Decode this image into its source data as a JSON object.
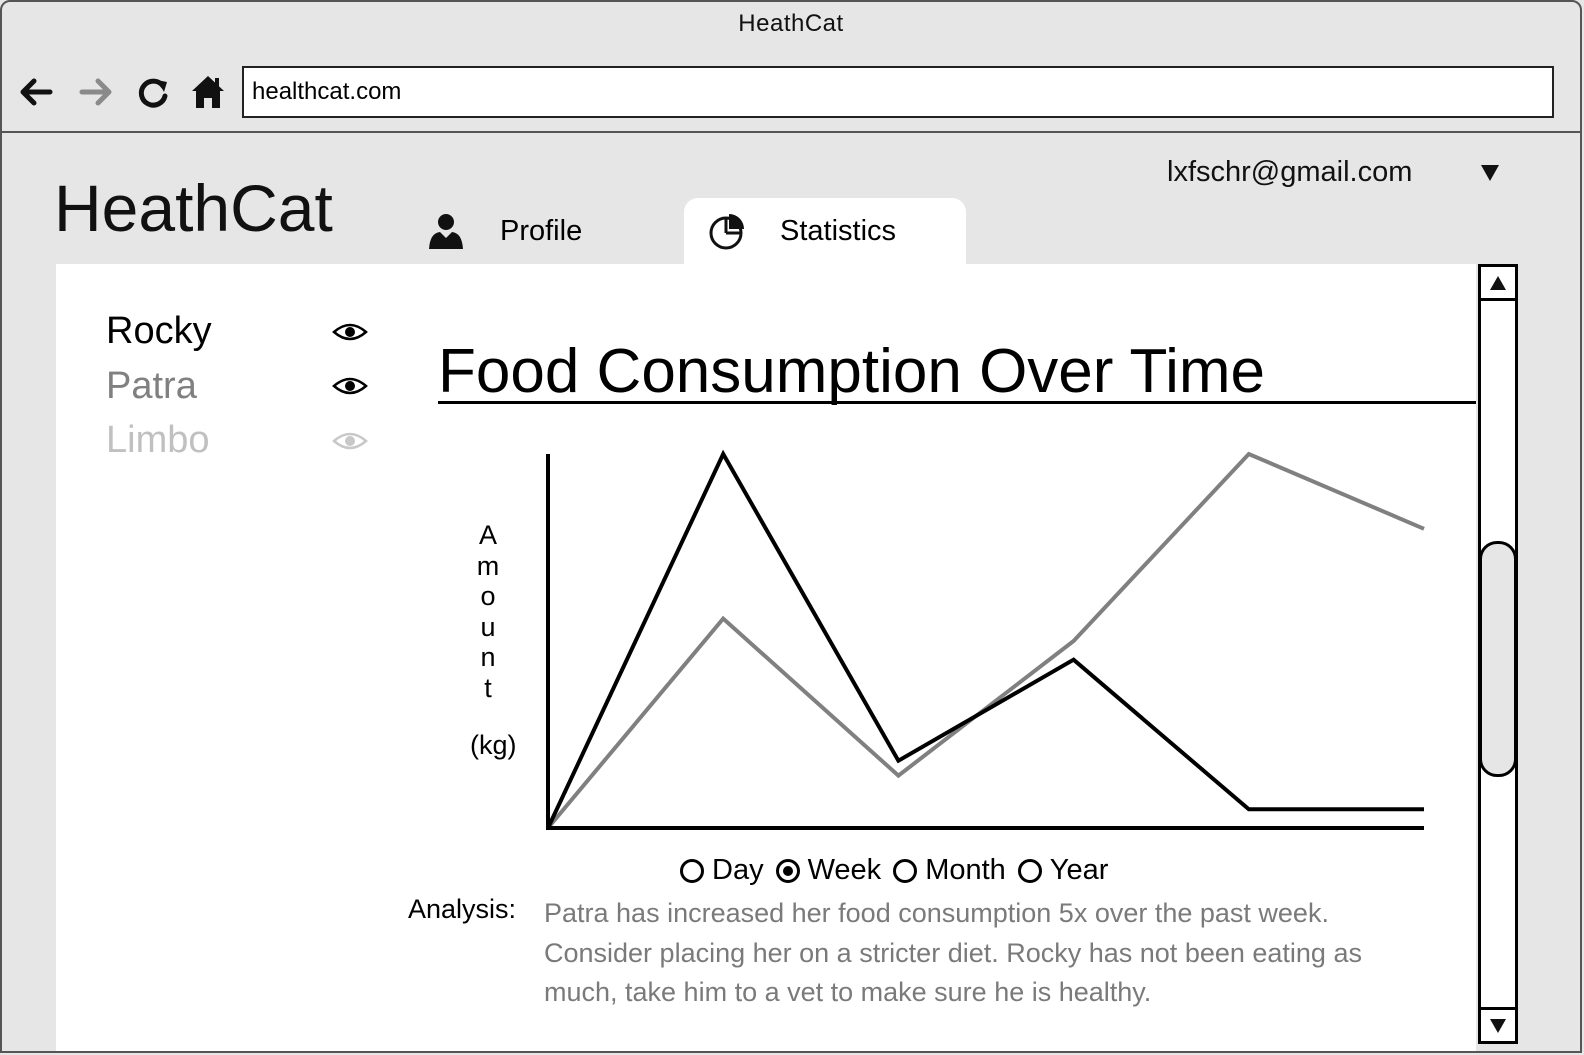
{
  "window": {
    "title": "HeathCat"
  },
  "browser": {
    "url": "healthcat.com",
    "icons": {
      "back": "arrow-left-icon",
      "forward": "arrow-right-icon",
      "reload": "reload-icon",
      "home": "home-icon"
    }
  },
  "app": {
    "brand": "HeathCat",
    "user_email": "lxfschr@gmail.com"
  },
  "tabs": [
    {
      "label": "Profile",
      "icon": "user-icon",
      "active": false
    },
    {
      "label": "Statistics",
      "icon": "pie-chart-icon",
      "active": true
    }
  ],
  "pets": [
    {
      "name": "Rocky",
      "visible": true,
      "color": "#000000"
    },
    {
      "name": "Patra",
      "visible": true,
      "color": "#808080"
    },
    {
      "name": "Limbo",
      "visible": false,
      "color": "#c0c0c0"
    }
  ],
  "chart_data": {
    "type": "line",
    "title": "Food Consumption Over Time",
    "ylabel": "Amount (kg)",
    "ylabel_letters": [
      "A",
      "m",
      "o",
      "u",
      "n",
      "t"
    ],
    "ylabel_unit": "(kg)",
    "x": [
      0,
      1,
      2,
      3,
      4,
      5
    ],
    "ylim": [
      0,
      10
    ],
    "grid": false,
    "series": [
      {
        "name": "Rocky",
        "color": "#000000",
        "x": [
          0,
          1,
          2,
          3,
          4,
          5
        ],
        "y": [
          0,
          10,
          1.8,
          4.5,
          0.5,
          0.5
        ]
      },
      {
        "name": "Patra",
        "color": "#808080",
        "x": [
          0,
          1,
          2,
          3,
          4,
          5
        ],
        "y": [
          0,
          5.6,
          1.4,
          5,
          10,
          8
        ]
      }
    ]
  },
  "range_options": [
    {
      "label": "Day",
      "selected": false
    },
    {
      "label": "Week",
      "selected": true
    },
    {
      "label": "Month",
      "selected": false
    },
    {
      "label": "Year",
      "selected": false
    }
  ],
  "analysis": {
    "label": "Analysis:",
    "text": "Patra has increased her food consumption 5x over the past week. Consider placing her on a stricter diet. Rocky has not been eating as much, take him to a vet to make sure he is healthy."
  }
}
